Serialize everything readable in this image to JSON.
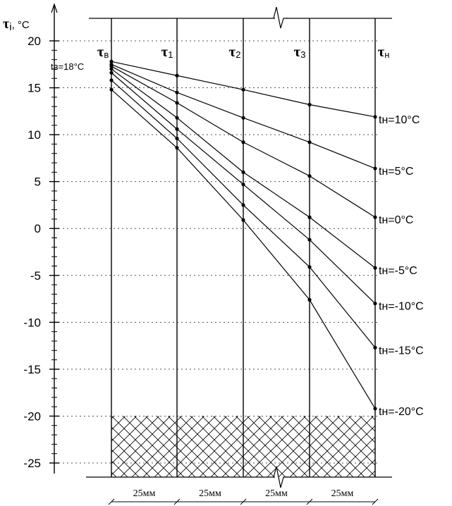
{
  "chart_data": {
    "type": "line",
    "ylabel": "τi, °C",
    "ylim": [
      -25,
      20
    ],
    "y_major_ticks": [
      20,
      15,
      10,
      5,
      0,
      -5,
      -10,
      -15,
      -20,
      -25
    ],
    "y_tick_labels": [
      "20",
      "15",
      "10",
      "5",
      "0",
      "-5",
      "-10",
      "-15",
      "-20",
      "-25"
    ],
    "minor_tick_step": 1,
    "grid": "dotted at major ticks",
    "categories": [
      "τв",
      "τ1",
      "τ2",
      "τ3",
      "τн"
    ],
    "column_labels": [
      {
        "main": "τ",
        "sub": "в"
      },
      {
        "main": "τ",
        "sub": "1"
      },
      {
        "main": "τ",
        "sub": "2"
      },
      {
        "main": "τ",
        "sub": "3"
      },
      {
        "main": "τ",
        "sub": "н"
      }
    ],
    "inner_air_label": "tв=18°C",
    "layer_thickness_labels": [
      "25мм",
      "25мм",
      "25мм",
      "25мм"
    ],
    "ground_hatch_below": -20,
    "series": [
      {
        "name": "tн=10°C",
        "values": [
          17.8,
          16.3,
          14.8,
          13.2,
          11.9
        ]
      },
      {
        "name": "tн=5°C",
        "values": [
          17.5,
          14.5,
          11.8,
          9.2,
          6.4
        ]
      },
      {
        "name": "tн=0°C",
        "values": [
          17.3,
          13.4,
          9.2,
          5.6,
          1.2
        ]
      },
      {
        "name": "tн=-5°C",
        "values": [
          17.0,
          11.8,
          6.0,
          1.2,
          -4.2
        ]
      },
      {
        "name": "tн=-10°C",
        "values": [
          16.6,
          10.6,
          4.7,
          -1.2,
          -8.0
        ]
      },
      {
        "name": "tн=-15°C",
        "values": [
          15.8,
          9.6,
          2.5,
          -4.1,
          -12.7
        ]
      },
      {
        "name": "tн=-20°C",
        "values": [
          14.8,
          8.6,
          0.9,
          -7.6,
          -19.2
        ]
      }
    ]
  }
}
